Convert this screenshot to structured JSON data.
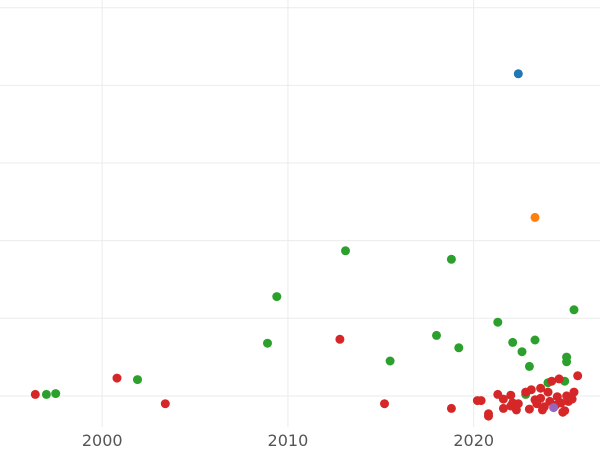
{
  "colors": {
    "background": "#ffffff",
    "grid": "#ebebeb",
    "tick_text": "#555555",
    "green": "#2ca02c",
    "red": "#d62728",
    "blue": "#1f77b4",
    "orange": "#ff7f0e",
    "purple": "#9467bd"
  },
  "chart_data": {
    "type": "scatter",
    "title": "",
    "xlabel": "",
    "ylabel": "",
    "x_ticks": [
      2000,
      2010,
      2020
    ],
    "xlim": [
      1994.5,
      2026.8
    ],
    "ylim": [
      0.6,
      6.1
    ],
    "y_gridlines": [
      1,
      2,
      3,
      4,
      5,
      6
    ],
    "grid": true,
    "legend": "none",
    "series": [
      {
        "color": "green",
        "points": [
          [
            1997.0,
            1.02
          ],
          [
            1997.5,
            1.03
          ],
          [
            2001.9,
            1.21
          ],
          [
            2008.9,
            1.68
          ],
          [
            2009.4,
            2.28
          ],
          [
            2013.1,
            2.87
          ],
          [
            2015.5,
            1.45
          ],
          [
            2018.0,
            1.78
          ],
          [
            2018.8,
            2.76
          ],
          [
            2019.2,
            1.62
          ],
          [
            2021.3,
            1.95
          ],
          [
            2022.1,
            1.69
          ],
          [
            2022.6,
            1.57
          ],
          [
            2023.0,
            1.38
          ],
          [
            2023.3,
            1.72
          ],
          [
            2024.0,
            1.17
          ],
          [
            2025.0,
            1.5
          ],
          [
            2025.4,
            2.11
          ],
          [
            2025.0,
            1.44
          ],
          [
            2024.9,
            1.19
          ],
          [
            2022.8,
            1.02
          ]
        ]
      },
      {
        "color": "red",
        "points": [
          [
            1996.4,
            1.02
          ],
          [
            2000.8,
            1.23
          ],
          [
            2003.4,
            0.9
          ],
          [
            2012.8,
            1.73
          ],
          [
            2015.2,
            0.9
          ],
          [
            2018.8,
            0.84
          ],
          [
            2020.2,
            0.94
          ],
          [
            2020.4,
            0.94
          ],
          [
            2020.8,
            0.74
          ],
          [
            2020.8,
            0.77
          ],
          [
            2021.3,
            1.02
          ],
          [
            2021.6,
            0.96
          ],
          [
            2021.6,
            0.84
          ],
          [
            2022.0,
            1.01
          ],
          [
            2022.0,
            0.87
          ],
          [
            2022.1,
            0.91
          ],
          [
            2022.3,
            0.82
          ],
          [
            2022.4,
            0.9
          ],
          [
            2022.8,
            1.05
          ],
          [
            2023.0,
            0.83
          ],
          [
            2023.1,
            1.08
          ],
          [
            2023.3,
            0.95
          ],
          [
            2023.4,
            0.9
          ],
          [
            2023.6,
            1.1
          ],
          [
            2023.6,
            0.97
          ],
          [
            2023.7,
            0.82
          ],
          [
            2023.8,
            0.86
          ],
          [
            2024.0,
            1.05
          ],
          [
            2024.1,
            0.93
          ],
          [
            2024.2,
            1.19
          ],
          [
            2024.4,
            0.88
          ],
          [
            2024.5,
            0.99
          ],
          [
            2024.6,
            1.22
          ],
          [
            2024.7,
            0.91
          ],
          [
            2024.8,
            0.79
          ],
          [
            2024.9,
            0.81
          ],
          [
            2025.0,
            1.0
          ],
          [
            2025.1,
            0.93
          ],
          [
            2025.3,
            0.96
          ],
          [
            2025.4,
            1.05
          ],
          [
            2025.6,
            1.26
          ]
        ]
      },
      {
        "color": "blue",
        "points": [
          [
            2022.4,
            5.15
          ]
        ]
      },
      {
        "color": "orange",
        "points": [
          [
            2023.3,
            3.3
          ]
        ]
      },
      {
        "color": "purple",
        "points": [
          [
            2024.3,
            0.85
          ]
        ]
      }
    ]
  }
}
